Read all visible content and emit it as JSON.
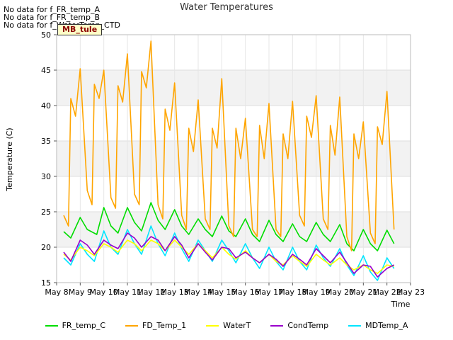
{
  "notices": [
    "No data for f_FR_temp_A",
    "No data for f_FR_temp_B",
    "No data for f_WaterTemp_CTD"
  ],
  "tag": "MB_tule",
  "chart_data": {
    "type": "line",
    "title": "Water Temperatures",
    "xlabel": "Time",
    "ylabel": "Temperature (C)",
    "ylim": [
      15,
      50
    ],
    "yticks": [
      15,
      20,
      25,
      30,
      35,
      40,
      45,
      50
    ],
    "xlim": [
      8,
      23
    ],
    "xticks": [
      8,
      9,
      10,
      11,
      12,
      13,
      14,
      15,
      16,
      17,
      18,
      19,
      20,
      21,
      22,
      23
    ],
    "xticklabels": [
      "May 8",
      "May 9",
      "May 10",
      "May 11",
      "May 12",
      "May 13",
      "May 14",
      "May 15",
      "May 16",
      "May 17",
      "May 18",
      "May 19",
      "May 20",
      "May 21",
      "May 22",
      "May 23"
    ],
    "grid": true,
    "background_bands": true,
    "legend_position": "bottom-center",
    "series": [
      {
        "name": "FR_temp_C",
        "color": "#00dd00",
        "x": [
          8.3,
          8.6,
          9.0,
          9.3,
          9.7,
          10.0,
          10.3,
          10.6,
          11.0,
          11.3,
          11.6,
          12.0,
          12.3,
          12.6,
          13.0,
          13.3,
          13.6,
          14.0,
          14.3,
          14.6,
          15.0,
          15.3,
          15.6,
          16.0,
          16.3,
          16.6,
          17.0,
          17.3,
          17.6,
          18.0,
          18.3,
          18.6,
          19.0,
          19.3,
          19.6,
          20.0,
          20.3,
          20.6,
          21.0,
          21.3,
          21.6,
          22.0,
          22.3
        ],
        "values": [
          22.2,
          21.3,
          24.2,
          22.5,
          21.8,
          25.6,
          23.0,
          22.0,
          25.6,
          23.5,
          22.3,
          26.3,
          23.8,
          22.5,
          25.3,
          23.0,
          21.8,
          24.0,
          22.5,
          21.5,
          24.4,
          22.3,
          21.5,
          24.0,
          21.8,
          20.8,
          23.8,
          21.8,
          20.8,
          23.3,
          21.5,
          20.8,
          23.5,
          21.8,
          20.8,
          23.2,
          20.5,
          19.5,
          22.5,
          20.5,
          19.5,
          22.4,
          20.5
        ]
      },
      {
        "name": "FD_Temp_1",
        "color": "#ffa500",
        "x": [
          8.3,
          8.5,
          8.6,
          8.8,
          9.0,
          9.3,
          9.5,
          9.6,
          9.8,
          10.0,
          10.3,
          10.5,
          10.6,
          10.8,
          11.0,
          11.3,
          11.5,
          11.6,
          11.8,
          12.0,
          12.3,
          12.5,
          12.6,
          12.8,
          13.0,
          13.3,
          13.5,
          13.6,
          13.8,
          14.0,
          14.3,
          14.5,
          14.6,
          14.8,
          15.0,
          15.3,
          15.5,
          15.6,
          15.8,
          16.0,
          16.3,
          16.5,
          16.6,
          16.8,
          17.0,
          17.3,
          17.5,
          17.6,
          17.8,
          18.0,
          18.3,
          18.5,
          18.6,
          18.8,
          19.0,
          19.3,
          19.5,
          19.6,
          19.8,
          20.0,
          20.3,
          20.5,
          20.6,
          20.8,
          21.0,
          21.3,
          21.5,
          21.6,
          21.8,
          22.0,
          22.3
        ],
        "values": [
          24.5,
          23.0,
          41.0,
          38.5,
          45.2,
          28.0,
          26.0,
          43.0,
          41.0,
          45.0,
          27.0,
          25.5,
          42.8,
          40.5,
          47.3,
          27.5,
          26.0,
          44.8,
          42.5,
          49.1,
          26.0,
          24.0,
          39.5,
          36.5,
          43.2,
          24.5,
          22.5,
          36.8,
          33.5,
          40.8,
          24.0,
          22.5,
          36.8,
          34.0,
          43.8,
          23.0,
          21.5,
          36.8,
          32.5,
          38.2,
          22.5,
          21.5,
          37.2,
          32.5,
          40.3,
          22.5,
          21.5,
          36.0,
          32.5,
          40.6,
          24.5,
          23.0,
          38.5,
          35.5,
          41.4,
          24.0,
          22.5,
          37.2,
          33.0,
          41.2,
          21.5,
          19.5,
          36.0,
          32.5,
          37.7,
          22.0,
          20.5,
          37.0,
          34.5,
          42.0,
          22.5
        ]
      },
      {
        "name": "WaterT",
        "color": "#ffff00",
        "x": [
          8.3,
          8.6,
          9.0,
          9.3,
          9.6,
          10.0,
          10.3,
          10.6,
          11.0,
          11.3,
          11.6,
          12.0,
          12.3,
          12.6,
          13.0,
          13.3,
          13.6,
          14.0,
          14.3,
          14.6,
          15.0,
          15.3,
          15.6,
          16.0,
          16.3,
          16.6,
          17.0,
          17.3,
          17.6,
          18.0,
          18.3,
          18.6,
          19.0,
          19.3,
          19.6,
          20.0,
          20.3,
          20.6,
          21.0,
          21.3,
          21.6,
          22.0,
          22.3
        ],
        "values": [
          19.0,
          18.2,
          20.0,
          19.5,
          18.8,
          20.5,
          20.0,
          19.3,
          21.0,
          20.5,
          19.5,
          21.0,
          20.5,
          19.5,
          21.0,
          20.0,
          19.0,
          20.5,
          19.5,
          18.5,
          20.0,
          19.0,
          18.3,
          19.5,
          18.5,
          17.8,
          19.0,
          18.0,
          17.5,
          18.8,
          18.0,
          17.3,
          19.0,
          18.2,
          17.5,
          18.5,
          17.5,
          16.8,
          17.5,
          16.8,
          16.3,
          17.5,
          17.3
        ]
      },
      {
        "name": "CondTemp",
        "color": "#9900cc",
        "x": [
          8.3,
          8.6,
          9.0,
          9.3,
          9.6,
          10.0,
          10.3,
          10.6,
          11.0,
          11.3,
          11.6,
          12.0,
          12.3,
          12.6,
          13.0,
          13.3,
          13.6,
          14.0,
          14.3,
          14.6,
          15.0,
          15.3,
          15.6,
          16.0,
          16.3,
          16.6,
          17.0,
          17.3,
          17.6,
          18.0,
          18.3,
          18.6,
          19.0,
          19.3,
          19.6,
          20.0,
          20.3,
          20.6,
          21.0,
          21.3,
          21.6,
          22.0,
          22.3
        ],
        "values": [
          19.3,
          18.0,
          21.0,
          20.3,
          19.0,
          21.0,
          20.3,
          19.8,
          22.0,
          21.3,
          20.0,
          21.5,
          21.0,
          19.5,
          21.5,
          20.3,
          18.5,
          20.5,
          19.3,
          18.2,
          20.0,
          19.8,
          18.5,
          19.3,
          18.5,
          17.8,
          19.0,
          18.3,
          17.3,
          19.0,
          18.3,
          17.5,
          19.8,
          18.8,
          17.8,
          19.3,
          17.8,
          16.3,
          17.5,
          17.3,
          15.8,
          17.0,
          17.5
        ]
      },
      {
        "name": "MDTemp_A",
        "color": "#00e5ff",
        "x": [
          8.3,
          8.6,
          9.0,
          9.3,
          9.6,
          10.0,
          10.3,
          10.6,
          11.0,
          11.3,
          11.6,
          12.0,
          12.3,
          12.6,
          13.0,
          13.3,
          13.6,
          14.0,
          14.3,
          14.6,
          15.0,
          15.3,
          15.6,
          16.0,
          16.3,
          16.6,
          17.0,
          17.3,
          17.6,
          18.0,
          18.3,
          18.6,
          19.0,
          19.3,
          19.6,
          20.0,
          20.3,
          20.6,
          21.0,
          21.3,
          21.6,
          22.0,
          22.3
        ],
        "values": [
          18.5,
          17.5,
          20.5,
          19.0,
          18.0,
          22.3,
          20.0,
          19.0,
          22.5,
          20.5,
          19.0,
          23.0,
          20.5,
          18.8,
          22.0,
          19.8,
          18.0,
          21.0,
          19.5,
          18.0,
          21.0,
          19.5,
          17.8,
          20.5,
          18.5,
          17.0,
          20.0,
          18.0,
          16.8,
          20.0,
          18.0,
          16.8,
          20.3,
          18.5,
          17.3,
          19.8,
          17.5,
          16.0,
          18.8,
          16.5,
          15.3,
          18.5,
          17.0
        ]
      }
    ]
  }
}
